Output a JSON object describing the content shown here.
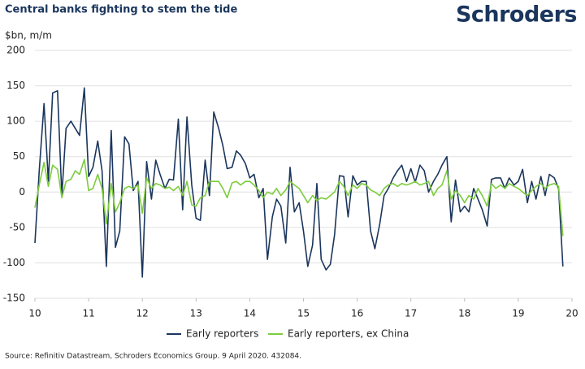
{
  "chart_data": {
    "type": "line",
    "title": "Central banks fighting to stem the tide",
    "brand": "Schroders",
    "y_label": "$bn, m/m",
    "source": "Source: Refinitiv Datastream, Schroders Economics Group. 9 April 2020. 432084.",
    "xlim": [
      10,
      20
    ],
    "xticks": [
      10,
      11,
      12,
      13,
      14,
      15,
      16,
      17,
      18,
      19,
      20
    ],
    "ylim": [
      -150,
      200
    ],
    "yticks": [
      -150,
      -100,
      -50,
      0,
      50,
      100,
      150,
      200
    ],
    "grid": true,
    "legend": "bottom",
    "x": [
      10.0,
      10.08,
      10.17,
      10.25,
      10.33,
      10.42,
      10.5,
      10.58,
      10.67,
      10.75,
      10.83,
      10.92,
      11.0,
      11.08,
      11.17,
      11.25,
      11.33,
      11.42,
      11.5,
      11.58,
      11.67,
      11.75,
      11.83,
      11.92,
      12.0,
      12.08,
      12.17,
      12.25,
      12.33,
      12.42,
      12.5,
      12.58,
      12.67,
      12.75,
      12.83,
      12.92,
      13.0,
      13.08,
      13.17,
      13.25,
      13.33,
      13.42,
      13.5,
      13.58,
      13.67,
      13.75,
      13.83,
      13.92,
      14.0,
      14.08,
      14.17,
      14.25,
      14.33,
      14.42,
      14.5,
      14.58,
      14.67,
      14.75,
      14.83,
      14.92,
      15.0,
      15.08,
      15.17,
      15.25,
      15.33,
      15.42,
      15.5,
      15.58,
      15.67,
      15.75,
      15.83,
      15.92,
      16.0,
      16.08,
      16.17,
      16.25,
      16.33,
      16.42,
      16.5,
      16.58,
      16.67,
      16.75,
      16.83,
      16.92,
      17.0,
      17.08,
      17.17,
      17.25,
      17.33,
      17.42,
      17.5,
      17.58,
      17.67,
      17.75,
      17.83,
      17.92,
      18.0,
      18.08,
      18.17,
      18.25,
      18.33,
      18.42,
      18.5,
      18.58,
      18.67,
      18.75,
      18.83,
      18.92,
      19.0,
      19.08,
      19.17,
      19.25,
      19.33,
      19.42,
      19.5,
      19.58,
      19.67,
      19.75,
      19.83
    ],
    "series": [
      {
        "name": "Early reporters",
        "color": "#1b365d",
        "values": [
          -72,
          30,
          125,
          15,
          140,
          143,
          -5,
          90,
          100,
          90,
          80,
          147,
          22,
          35,
          72,
          30,
          -105,
          87,
          -78,
          -55,
          78,
          68,
          2,
          15,
          -120,
          43,
          -10,
          45,
          25,
          5,
          18,
          17,
          103,
          -25,
          106,
          10,
          -37,
          -40,
          45,
          -5,
          113,
          90,
          65,
          33,
          35,
          58,
          52,
          40,
          20,
          25,
          -8,
          5,
          -95,
          -35,
          -10,
          -20,
          -72,
          35,
          -28,
          -15,
          -55,
          -105,
          -75,
          12,
          -95,
          -110,
          -102,
          -60,
          23,
          22,
          -35,
          23,
          10,
          15,
          15,
          -55,
          -80,
          -45,
          -5,
          5,
          20,
          30,
          38,
          15,
          33,
          14,
          38,
          30,
          0,
          15,
          25,
          38,
          50,
          -42,
          17,
          -28,
          -20,
          -28,
          5,
          -10,
          -25,
          -48,
          18,
          20,
          20,
          5,
          20,
          10,
          15,
          32,
          -15,
          15,
          -10,
          22,
          -5,
          25,
          20,
          5,
          -105
        ]
      },
      {
        "name": "Early reporters, ex China",
        "color": "#7ccc3c",
        "values": [
          -22,
          10,
          42,
          8,
          38,
          32,
          -8,
          15,
          18,
          30,
          25,
          46,
          2,
          5,
          25,
          5,
          -45,
          12,
          -28,
          -15,
          5,
          8,
          5,
          10,
          -30,
          20,
          5,
          12,
          10,
          5,
          7,
          2,
          8,
          -5,
          15,
          -18,
          -20,
          -8,
          -5,
          15,
          15,
          15,
          5,
          -8,
          13,
          15,
          10,
          15,
          15,
          10,
          2,
          -8,
          0,
          -3,
          5,
          -5,
          3,
          15,
          10,
          5,
          -5,
          -15,
          -5,
          -12,
          -8,
          -10,
          -5,
          0,
          15,
          8,
          -5,
          10,
          5,
          12,
          10,
          3,
          0,
          -5,
          5,
          10,
          12,
          8,
          12,
          10,
          12,
          15,
          10,
          12,
          15,
          -5,
          5,
          10,
          30,
          -10,
          2,
          -5,
          -15,
          -5,
          -10,
          5,
          -5,
          -20,
          12,
          5,
          10,
          5,
          12,
          8,
          5,
          0,
          -5,
          2,
          8,
          12,
          5,
          10,
          12,
          8,
          -62
        ]
      }
    ]
  }
}
